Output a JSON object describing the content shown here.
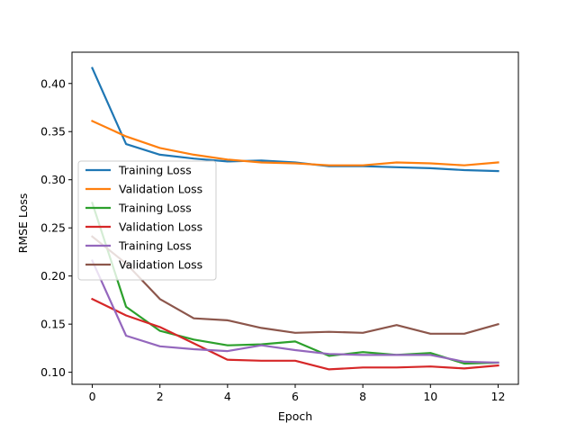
{
  "chart_data": {
    "type": "line",
    "xlabel": "Epoch",
    "ylabel": "RMSE Loss",
    "xlim": [
      -0.6,
      12.6
    ],
    "ylim": [
      0.0875,
      0.4325
    ],
    "xticks": [
      0,
      2,
      4,
      6,
      8,
      10,
      12
    ],
    "yticks": [
      0.1,
      0.15,
      0.2,
      0.25,
      0.3,
      0.35,
      0.4
    ],
    "xtick_labels": [
      "0",
      "2",
      "4",
      "6",
      "8",
      "10",
      "12"
    ],
    "ytick_labels": [
      "0.10",
      "0.15",
      "0.20",
      "0.25",
      "0.30",
      "0.35",
      "0.40"
    ],
    "grid": false,
    "legend_position": "center-left",
    "x": [
      0,
      1,
      2,
      3,
      4,
      5,
      6,
      7,
      8,
      9,
      10,
      11,
      12
    ],
    "series": [
      {
        "name": "Training Loss",
        "color": "#1f77b4",
        "values": [
          0.416,
          0.337,
          0.326,
          0.322,
          0.319,
          0.32,
          0.318,
          0.314,
          0.314,
          0.313,
          0.312,
          0.31,
          0.309
        ]
      },
      {
        "name": "Validation Loss",
        "color": "#ff7f0e",
        "values": [
          0.361,
          0.345,
          0.333,
          0.326,
          0.321,
          0.318,
          0.317,
          0.315,
          0.315,
          0.318,
          0.317,
          0.315,
          0.318
        ]
      },
      {
        "name": "Training Loss",
        "color": "#2ca02c",
        "values": [
          0.276,
          0.168,
          0.143,
          0.134,
          0.128,
          0.129,
          0.132,
          0.117,
          0.121,
          0.118,
          0.12,
          0.109,
          0.11
        ]
      },
      {
        "name": "Validation Loss",
        "color": "#d62728",
        "values": [
          0.176,
          0.159,
          0.147,
          0.13,
          0.113,
          0.112,
          0.112,
          0.103,
          0.105,
          0.105,
          0.106,
          0.104,
          0.107
        ]
      },
      {
        "name": "Training Loss",
        "color": "#9467bd",
        "values": [
          0.216,
          0.138,
          0.127,
          0.124,
          0.122,
          0.128,
          0.123,
          0.119,
          0.118,
          0.118,
          0.118,
          0.111,
          0.11
        ]
      },
      {
        "name": "Validation Loss",
        "color": "#8c564b",
        "values": [
          0.241,
          0.213,
          0.176,
          0.156,
          0.154,
          0.146,
          0.141,
          0.142,
          0.141,
          0.149,
          0.14,
          0.14,
          0.15
        ]
      }
    ]
  }
}
